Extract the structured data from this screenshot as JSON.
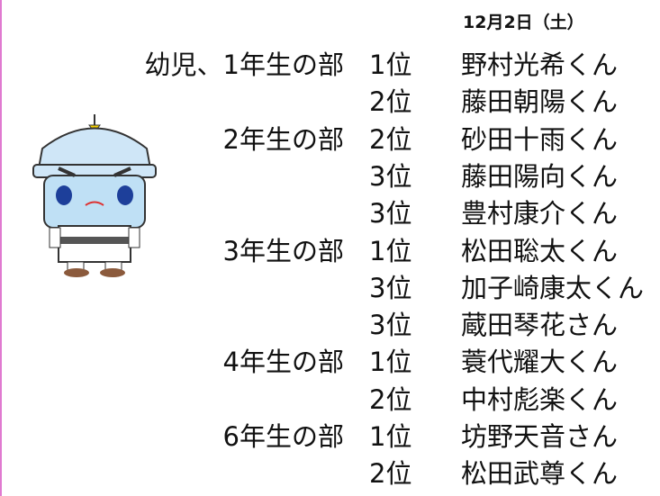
{
  "date": "12月2日（土）",
  "groups": [
    {
      "division": "幼児、1年生の部",
      "results": [
        {
          "rank": "1位",
          "name": "野村光希くん"
        },
        {
          "rank": "2位",
          "name": "藤田朝陽くん"
        }
      ]
    },
    {
      "division": "2年生の部",
      "results": [
        {
          "rank": "2位",
          "name": "砂田十雨くん"
        },
        {
          "rank": "3位",
          "name": "藤田陽向くん"
        },
        {
          "rank": "3位",
          "name": "豊村康介くん"
        }
      ]
    },
    {
      "division": "3年生の部",
      "results": [
        {
          "rank": "1位",
          "name": "松田聡太くん"
        },
        {
          "rank": "3位",
          "name": "加子崎康太くん"
        },
        {
          "rank": "3位",
          "name": "蔵田琴花さん"
        }
      ]
    },
    {
      "division": "4年生の部",
      "results": [
        {
          "rank": "1位",
          "name": "蓑代耀大くん"
        },
        {
          "rank": "2位",
          "name": "中村彪楽くん"
        }
      ]
    },
    {
      "division": "6年生の部",
      "results": [
        {
          "rank": "1位",
          "name": "坊野天音さん"
        },
        {
          "rank": "2位",
          "name": "松田武尊くん"
        }
      ]
    }
  ]
}
